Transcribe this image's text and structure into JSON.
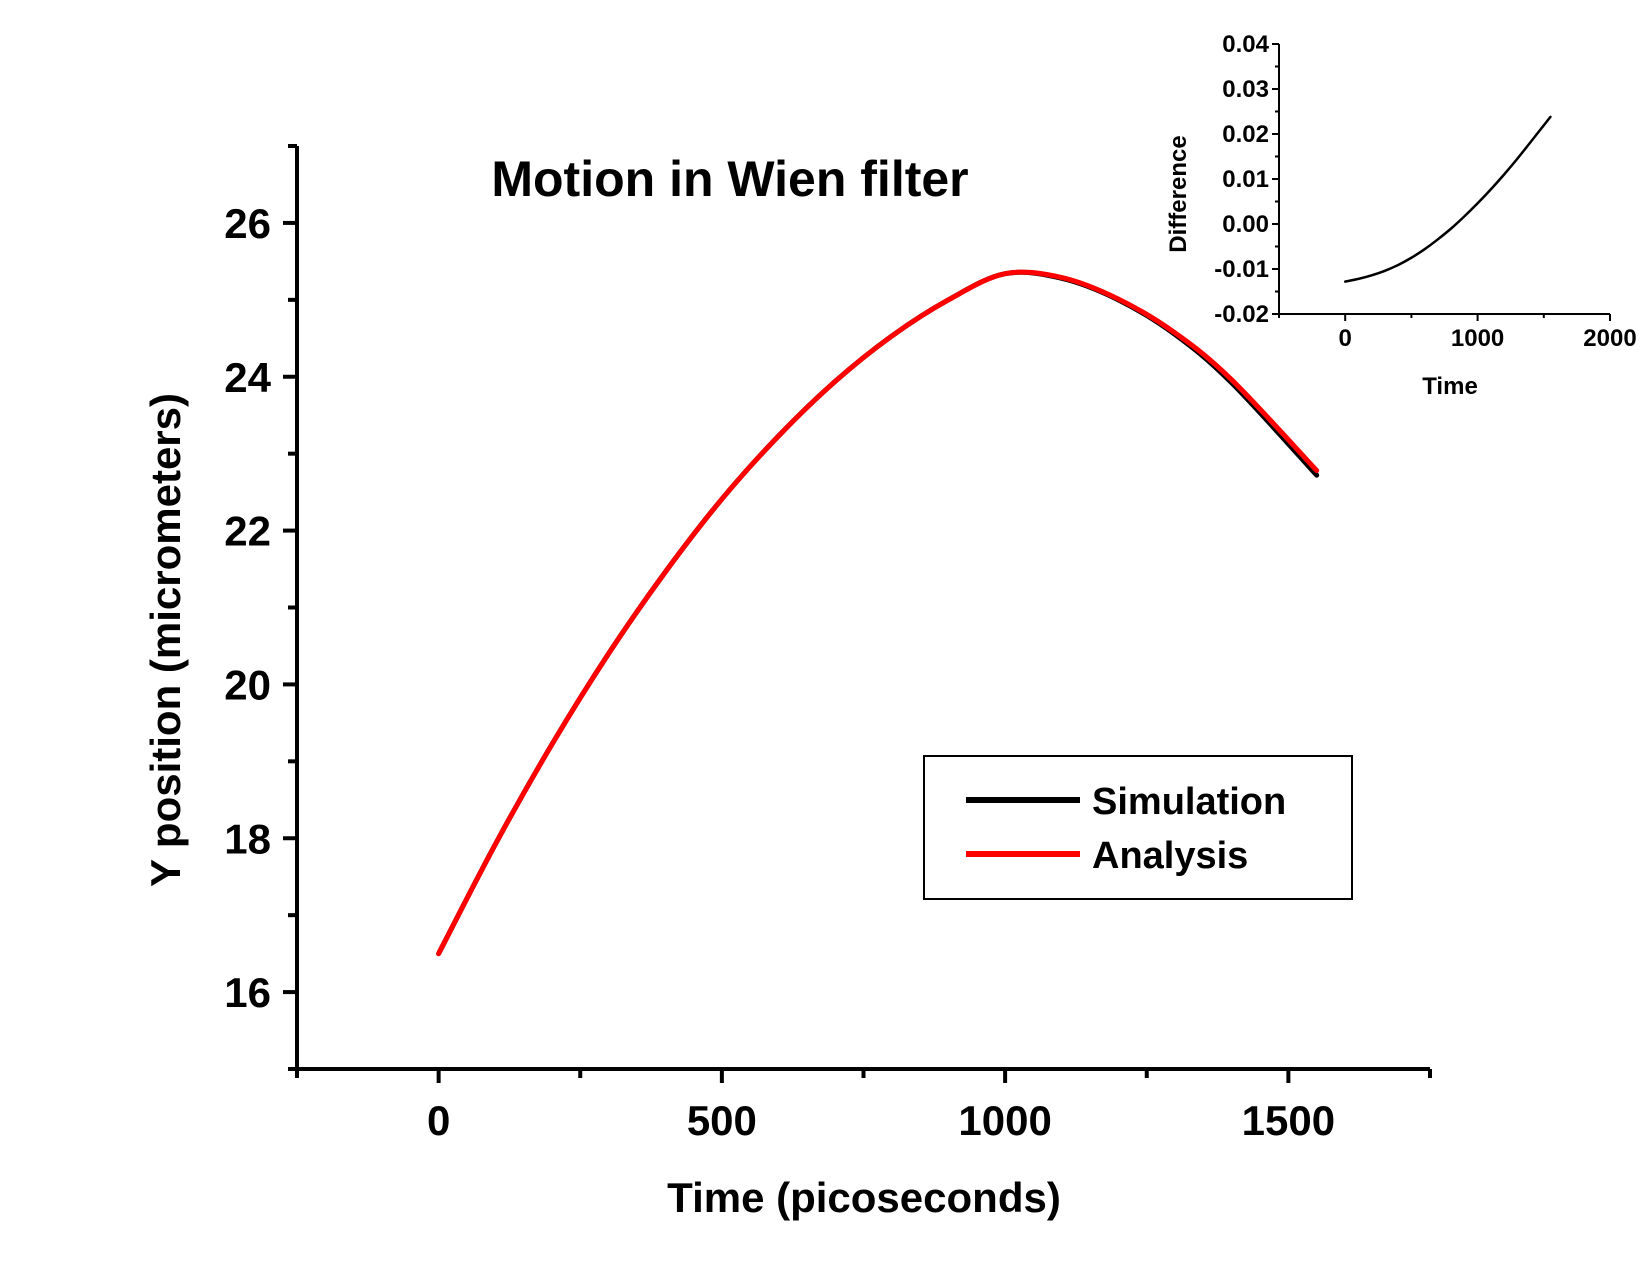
{
  "chart_data": [
    {
      "type": "line",
      "title": "Motion in Wien filter",
      "xlabel": "Time (picoseconds)",
      "ylabel": "Y position (micrometers)",
      "xlim": [
        -250,
        1750
      ],
      "ylim": [
        15,
        27
      ],
      "xticks": [
        0,
        500,
        1000,
        1500
      ],
      "xticklabels": [
        "0",
        "500",
        "1000",
        "1500"
      ],
      "yticks": [
        16,
        18,
        20,
        22,
        24,
        26
      ],
      "yticklabels": [
        "16",
        "18",
        "20",
        "22",
        "24",
        "26"
      ],
      "legend_position": "bottom-right",
      "series": [
        {
          "name": "Simulation",
          "color": "#000000",
          "x": [
            0,
            100,
            200,
            300,
            400,
            500,
            600,
            700,
            800,
            900,
            1000,
            1100,
            1200,
            1300,
            1400,
            1550
          ],
          "y": [
            16.5,
            17.92,
            19.22,
            20.4,
            21.46,
            22.41,
            23.23,
            23.94,
            24.53,
            25.0,
            25.34,
            25.28,
            25.0,
            24.55,
            23.92,
            22.72
          ]
        },
        {
          "name": "Analysis",
          "color": "#ff0000",
          "x": [
            0,
            100,
            200,
            300,
            400,
            500,
            600,
            700,
            800,
            900,
            1000,
            1100,
            1200,
            1300,
            1400,
            1550
          ],
          "y": [
            16.5,
            17.92,
            19.22,
            20.4,
            21.46,
            22.41,
            23.23,
            23.94,
            24.53,
            25.0,
            25.34,
            25.29,
            25.01,
            24.57,
            23.96,
            22.78
          ]
        }
      ]
    },
    {
      "type": "line",
      "title": "",
      "xlabel": "Time",
      "ylabel": "Difference",
      "xlim": [
        -500,
        2000
      ],
      "ylim": [
        -0.02,
        0.04
      ],
      "xticks": [
        0,
        1000,
        2000
      ],
      "xticklabels": [
        "0",
        "1000",
        "2000"
      ],
      "yticks": [
        -0.02,
        -0.01,
        0.0,
        0.01,
        0.02,
        0.03,
        0.04
      ],
      "yticklabels": [
        "-0.02",
        "-0.01",
        "0.00",
        "0.01",
        "0.02",
        "0.03",
        "0.04"
      ],
      "series": [
        {
          "color": "#000000",
          "x": [
            0,
            100,
            200,
            300,
            400,
            500,
            600,
            700,
            800,
            900,
            1000,
            1100,
            1200,
            1300,
            1400,
            1550
          ],
          "y": [
            -0.0128,
            -0.0122,
            -0.0114,
            -0.0104,
            -0.0091,
            -0.0075,
            -0.0056,
            -0.0034,
            -0.001,
            0.0017,
            0.0046,
            0.0077,
            0.011,
            0.0145,
            0.0182,
            0.0238
          ]
        }
      ]
    }
  ]
}
